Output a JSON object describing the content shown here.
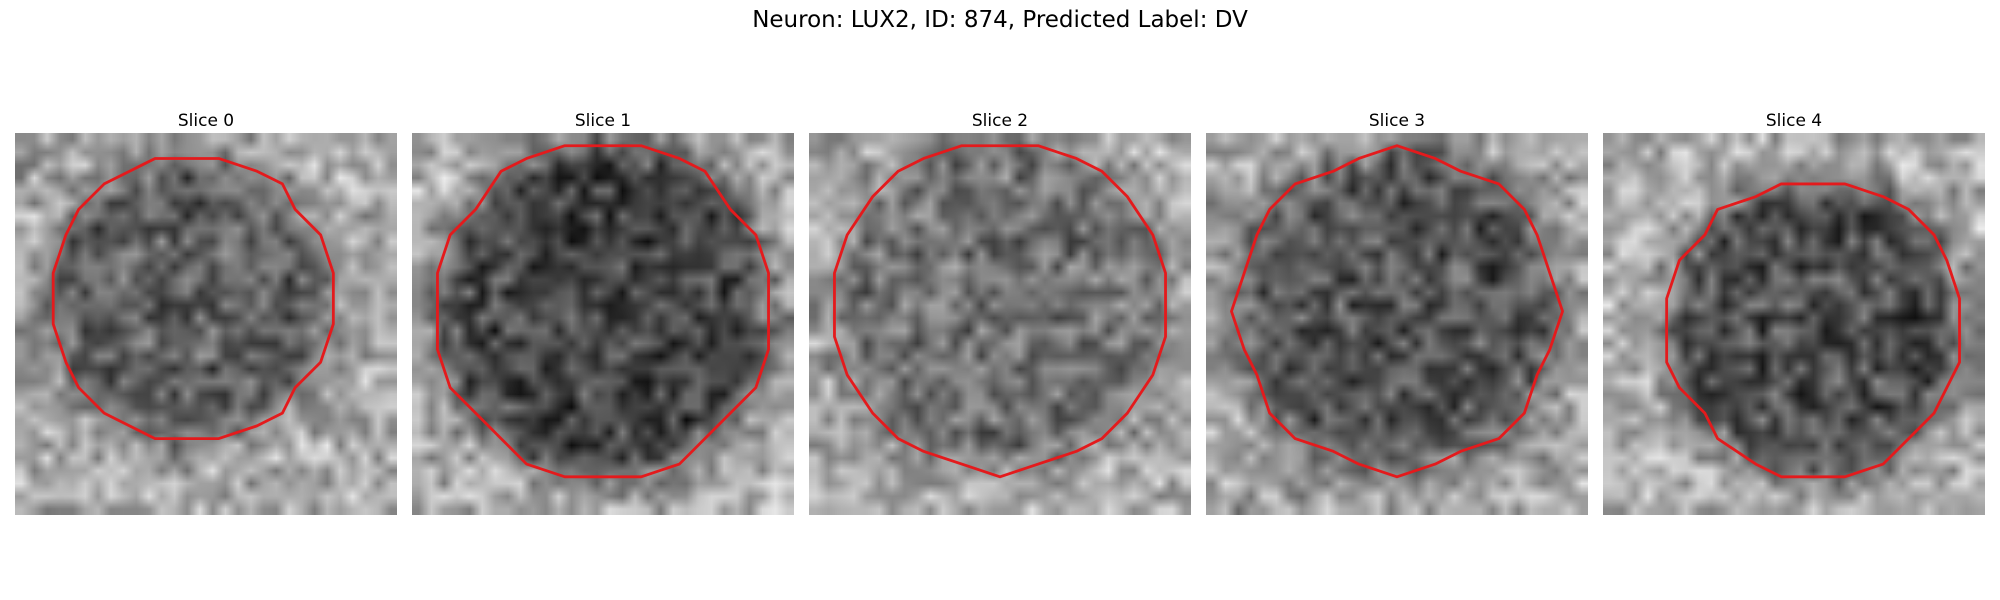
{
  "figure": {
    "title": "Neuron: LUX2, ID: 874, Predicted Label: DV"
  },
  "contour_color": "#e41a1c",
  "colormap": "gray",
  "slices": [
    {
      "title": "Slice 0"
    },
    {
      "title": "Slice 1"
    },
    {
      "title": "Slice 2"
    },
    {
      "title": "Slice 3"
    },
    {
      "title": "Slice 4"
    }
  ]
}
